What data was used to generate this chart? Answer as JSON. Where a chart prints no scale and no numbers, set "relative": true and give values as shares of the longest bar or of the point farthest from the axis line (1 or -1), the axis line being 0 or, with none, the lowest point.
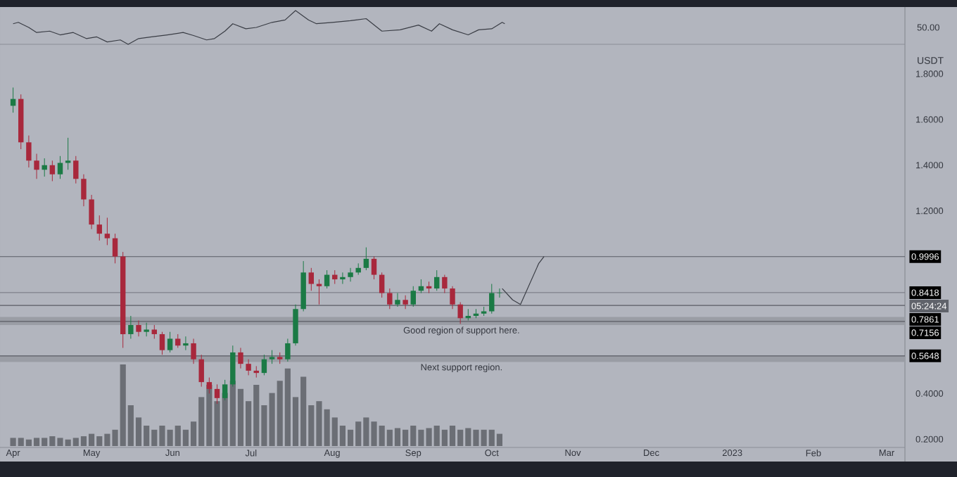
{
  "chart_data": [
    {
      "type": "line",
      "relative": true,
      "tick_labels": false,
      "xlim": [
        "2022-03-27",
        "2023-03-08"
      ],
      "annotations": [
        "50.00"
      ],
      "color": "#3a3d45",
      "x": [
        "2022-04-01",
        "2022-04-03",
        "2022-04-07",
        "2022-04-10",
        "2022-04-15",
        "2022-04-19",
        "2022-04-24",
        "2022-04-29",
        "2022-05-03",
        "2022-05-07",
        "2022-05-12",
        "2022-05-15",
        "2022-05-19",
        "2022-05-24",
        "2022-05-30",
        "2022-06-05",
        "2022-06-09",
        "2022-06-14",
        "2022-06-17",
        "2022-06-21",
        "2022-06-24",
        "2022-06-29",
        "2022-07-03",
        "2022-07-09",
        "2022-07-14",
        "2022-07-18",
        "2022-07-23",
        "2022-07-26",
        "2022-08-01",
        "2022-08-08",
        "2022-08-14",
        "2022-08-20",
        "2022-08-27",
        "2022-09-03",
        "2022-09-08",
        "2022-09-11",
        "2022-09-16",
        "2022-09-22",
        "2022-09-26",
        "2022-10-01",
        "2022-10-05",
        "2022-10-06"
      ],
      "values": [
        0.61,
        0.65,
        0.5,
        0.35,
        0.39,
        0.28,
        0.35,
        0.17,
        0.22,
        0.07,
        0.13,
        0,
        0.17,
        0.22,
        0.28,
        0.35,
        0.26,
        0.13,
        0.17,
        0.39,
        0.61,
        0.46,
        0.5,
        0.65,
        0.72,
        1,
        0.72,
        0.61,
        0.65,
        0.7,
        0.76,
        0.39,
        0.43,
        0.57,
        0.39,
        0.61,
        0.43,
        0.28,
        0.43,
        0.46,
        0.65,
        0.61
      ]
    },
    {
      "type": "candlestick",
      "ylabel": "USDT",
      "xlim": [
        "2022-03-27",
        "2023-03-08"
      ],
      "ylim": [
        0.17,
        1.92
      ],
      "xticks": [
        {
          "value": "2022-04-01",
          "label": "Apr"
        },
        {
          "value": "2022-05-01",
          "label": "May"
        },
        {
          "value": "2022-06-01",
          "label": "Jun"
        },
        {
          "value": "2022-07-01",
          "label": "Jul"
        },
        {
          "value": "2022-08-01",
          "label": "Aug"
        },
        {
          "value": "2022-09-01",
          "label": "Sep"
        },
        {
          "value": "2022-10-01",
          "label": "Oct"
        },
        {
          "value": "2022-11-01",
          "label": "Nov"
        },
        {
          "value": "2022-12-01",
          "label": "Dec"
        },
        {
          "value": "2023-01-01",
          "label": "2023"
        },
        {
          "value": "2023-02-01",
          "label": "Feb"
        },
        {
          "value": "2023-03-01",
          "label": "Mar"
        }
      ],
      "yticks": [
        {
          "value": 0.2,
          "label": "0.2000"
        },
        {
          "value": 0.4,
          "label": "0.4000"
        },
        {
          "value": 1.2,
          "label": "1.2000"
        },
        {
          "value": 1.4,
          "label": "1.4000"
        },
        {
          "value": 1.6,
          "label": "1.6000"
        },
        {
          "value": 1.8,
          "label": "1.8000"
        }
      ],
      "ref_lines": [
        {
          "axis": "y",
          "value": 0.9996,
          "label": "0.9996",
          "color": "#5a5d65"
        },
        {
          "axis": "y",
          "value": 0.8418,
          "label": "0.8418",
          "color": "#7e818a"
        },
        {
          "axis": "y",
          "value": 0.7861,
          "label": "0.7861",
          "color": "#5a5d65"
        },
        {
          "axis": "y",
          "value": 0.7156,
          "label": "0.7156",
          "color": "#5a5d65"
        },
        {
          "axis": "y",
          "value": 0.5648,
          "label": "0.5648",
          "color": "#5a5d65"
        }
      ],
      "bands": [
        {
          "axis": "y",
          "from": 0.7,
          "to": 0.735,
          "label": "Good region of support here.",
          "color": "#9a9da5"
        },
        {
          "axis": "y",
          "from": 0.538,
          "to": 0.5648,
          "label": "Next support region.",
          "color": "#9a9da5"
        }
      ],
      "annotations": [
        "05:24:24"
      ],
      "x": [
        "2022-04-01",
        "2022-04-04",
        "2022-04-07",
        "2022-04-10",
        "2022-04-13",
        "2022-04-16",
        "2022-04-19",
        "2022-04-22",
        "2022-04-25",
        "2022-04-28",
        "2022-05-01",
        "2022-05-04",
        "2022-05-07",
        "2022-05-10",
        "2022-05-13",
        "2022-05-16",
        "2022-05-19",
        "2022-05-22",
        "2022-05-25",
        "2022-05-28",
        "2022-05-31",
        "2022-06-03",
        "2022-06-06",
        "2022-06-09",
        "2022-06-12",
        "2022-06-15",
        "2022-06-18",
        "2022-06-21",
        "2022-06-24",
        "2022-06-27",
        "2022-06-30",
        "2022-07-03",
        "2022-07-06",
        "2022-07-09",
        "2022-07-12",
        "2022-07-15",
        "2022-07-18",
        "2022-07-21",
        "2022-07-24",
        "2022-07-27",
        "2022-07-30",
        "2022-08-02",
        "2022-08-05",
        "2022-08-08",
        "2022-08-11",
        "2022-08-14",
        "2022-08-17",
        "2022-08-20",
        "2022-08-23",
        "2022-08-26",
        "2022-08-29",
        "2022-09-01",
        "2022-09-04",
        "2022-09-07",
        "2022-09-10",
        "2022-09-13",
        "2022-09-16",
        "2022-09-19",
        "2022-09-22",
        "2022-09-25",
        "2022-09-28",
        "2022-10-01",
        "2022-10-04"
      ],
      "ohlc": [
        [
          1.66,
          1.74,
          1.63,
          1.69
        ],
        [
          1.69,
          1.71,
          1.47,
          1.5
        ],
        [
          1.5,
          1.53,
          1.39,
          1.42
        ],
        [
          1.42,
          1.45,
          1.34,
          1.38
        ],
        [
          1.38,
          1.43,
          1.35,
          1.4
        ],
        [
          1.4,
          1.42,
          1.33,
          1.36
        ],
        [
          1.36,
          1.44,
          1.34,
          1.41
        ],
        [
          1.41,
          1.52,
          1.38,
          1.42
        ],
        [
          1.42,
          1.44,
          1.32,
          1.34
        ],
        [
          1.34,
          1.36,
          1.22,
          1.25
        ],
        [
          1.25,
          1.27,
          1.12,
          1.14
        ],
        [
          1.14,
          1.18,
          1.07,
          1.1
        ],
        [
          1.1,
          1.17,
          1.05,
          1.08
        ],
        [
          1.08,
          1.1,
          0.97,
          1.0
        ],
        [
          1.0,
          1.02,
          0.6,
          0.66
        ],
        [
          0.66,
          0.74,
          0.64,
          0.7
        ],
        [
          0.7,
          0.72,
          0.65,
          0.67
        ],
        [
          0.67,
          0.71,
          0.65,
          0.68
        ],
        [
          0.68,
          0.7,
          0.64,
          0.66
        ],
        [
          0.66,
          0.67,
          0.57,
          0.59
        ],
        [
          0.59,
          0.67,
          0.58,
          0.64
        ],
        [
          0.64,
          0.66,
          0.6,
          0.61
        ],
        [
          0.61,
          0.65,
          0.59,
          0.62
        ],
        [
          0.62,
          0.64,
          0.53,
          0.55
        ],
        [
          0.55,
          0.57,
          0.43,
          0.45
        ],
        [
          0.45,
          0.47,
          0.4,
          0.42
        ],
        [
          0.42,
          0.44,
          0.355,
          0.38
        ],
        [
          0.38,
          0.46,
          0.37,
          0.44
        ],
        [
          0.44,
          0.61,
          0.43,
          0.58
        ],
        [
          0.58,
          0.6,
          0.51,
          0.53
        ],
        [
          0.53,
          0.55,
          0.48,
          0.5
        ],
        [
          0.5,
          0.52,
          0.47,
          0.49
        ],
        [
          0.49,
          0.57,
          0.48,
          0.55
        ],
        [
          0.55,
          0.59,
          0.53,
          0.56
        ],
        [
          0.56,
          0.58,
          0.53,
          0.55
        ],
        [
          0.55,
          0.64,
          0.54,
          0.62
        ],
        [
          0.62,
          0.79,
          0.61,
          0.77
        ],
        [
          0.77,
          0.98,
          0.76,
          0.93
        ],
        [
          0.93,
          0.95,
          0.85,
          0.88
        ],
        [
          0.88,
          0.9,
          0.79,
          0.87
        ],
        [
          0.87,
          0.94,
          0.86,
          0.92
        ],
        [
          0.92,
          0.94,
          0.88,
          0.9
        ],
        [
          0.9,
          0.93,
          0.88,
          0.91
        ],
        [
          0.91,
          0.95,
          0.89,
          0.93
        ],
        [
          0.93,
          0.97,
          0.92,
          0.95
        ],
        [
          0.95,
          1.04,
          0.94,
          0.99
        ],
        [
          0.99,
          1.0,
          0.9,
          0.92
        ],
        [
          0.92,
          0.93,
          0.82,
          0.84
        ],
        [
          0.84,
          0.86,
          0.77,
          0.79
        ],
        [
          0.79,
          0.84,
          0.78,
          0.81
        ],
        [
          0.81,
          0.83,
          0.77,
          0.79
        ],
        [
          0.79,
          0.87,
          0.78,
          0.85
        ],
        [
          0.85,
          0.9,
          0.84,
          0.87
        ],
        [
          0.87,
          0.89,
          0.84,
          0.86
        ],
        [
          0.86,
          0.94,
          0.85,
          0.91
        ],
        [
          0.91,
          0.92,
          0.84,
          0.86
        ],
        [
          0.86,
          0.87,
          0.77,
          0.79
        ],
        [
          0.79,
          0.8,
          0.705,
          0.73
        ],
        [
          0.73,
          0.77,
          0.72,
          0.74
        ],
        [
          0.74,
          0.77,
          0.73,
          0.75
        ],
        [
          0.75,
          0.78,
          0.74,
          0.76
        ],
        [
          0.76,
          0.88,
          0.75,
          0.84
        ],
        [
          0.84,
          0.86,
          0.82,
          0.8418
        ]
      ],
      "colors": [
        "#1b7a45",
        "#a8283c",
        "#a8283c",
        "#a8283c",
        "#1b7a45",
        "#a8283c",
        "#1b7a45",
        "#1b7a45",
        "#a8283c",
        "#a8283c",
        "#a8283c",
        "#a8283c",
        "#a8283c",
        "#a8283c",
        "#a8283c",
        "#1b7a45",
        "#a8283c",
        "#1b7a45",
        "#a8283c",
        "#a8283c",
        "#1b7a45",
        "#a8283c",
        "#1b7a45",
        "#a8283c",
        "#a8283c",
        "#a8283c",
        "#a8283c",
        "#1b7a45",
        "#1b7a45",
        "#a8283c",
        "#a8283c",
        "#a8283c",
        "#1b7a45",
        "#1b7a45",
        "#a8283c",
        "#1b7a45",
        "#1b7a45",
        "#1b7a45",
        "#a8283c",
        "#a8283c",
        "#1b7a45",
        "#a8283c",
        "#1b7a45",
        "#1b7a45",
        "#1b7a45",
        "#1b7a45",
        "#a8283c",
        "#a8283c",
        "#a8283c",
        "#1b7a45",
        "#a8283c",
        "#1b7a45",
        "#1b7a45",
        "#a8283c",
        "#1b7a45",
        "#a8283c",
        "#a8283c",
        "#a8283c",
        "#1b7a45",
        "#1b7a45",
        "#1b7a45",
        "#1b7a45",
        "#1b7a45"
      ],
      "series": [
        {
          "type": "line",
          "color": "#3a3d45",
          "x": [
            "2022-10-05",
            "2022-10-09",
            "2022-10-12",
            "2022-10-19",
            "2022-10-21"
          ],
          "values": [
            0.86,
            0.81,
            0.79,
            0.97,
            1.0
          ]
        }
      ]
    },
    {
      "type": "bar",
      "relative": true,
      "tick_labels": false,
      "xlim": [
        "2022-03-27",
        "2023-03-08"
      ],
      "color": "#6b6e75",
      "x": [
        "2022-04-01",
        "2022-04-04",
        "2022-04-07",
        "2022-04-10",
        "2022-04-13",
        "2022-04-16",
        "2022-04-19",
        "2022-04-22",
        "2022-04-25",
        "2022-04-28",
        "2022-05-01",
        "2022-05-04",
        "2022-05-07",
        "2022-05-10",
        "2022-05-13",
        "2022-05-16",
        "2022-05-19",
        "2022-05-22",
        "2022-05-25",
        "2022-05-28",
        "2022-05-31",
        "2022-06-03",
        "2022-06-06",
        "2022-06-09",
        "2022-06-12",
        "2022-06-15",
        "2022-06-18",
        "2022-06-21",
        "2022-06-24",
        "2022-06-27",
        "2022-06-30",
        "2022-07-03",
        "2022-07-06",
        "2022-07-09",
        "2022-07-12",
        "2022-07-15",
        "2022-07-18",
        "2022-07-21",
        "2022-07-24",
        "2022-07-27",
        "2022-07-30",
        "2022-08-02",
        "2022-08-05",
        "2022-08-08",
        "2022-08-11",
        "2022-08-14",
        "2022-08-17",
        "2022-08-20",
        "2022-08-23",
        "2022-08-26",
        "2022-08-29",
        "2022-09-01",
        "2022-09-04",
        "2022-09-07",
        "2022-09-10",
        "2022-09-13",
        "2022-09-16",
        "2022-09-19",
        "2022-09-22",
        "2022-09-25",
        "2022-09-28",
        "2022-10-01",
        "2022-10-04"
      ],
      "values": [
        0.1,
        0.1,
        0.08,
        0.1,
        0.1,
        0.12,
        0.1,
        0.08,
        0.1,
        0.12,
        0.15,
        0.12,
        0.15,
        0.2,
        1.0,
        0.5,
        0.35,
        0.25,
        0.2,
        0.25,
        0.2,
        0.25,
        0.2,
        0.3,
        0.6,
        0.75,
        0.55,
        0.65,
        0.8,
        0.7,
        0.55,
        0.75,
        0.5,
        0.65,
        0.8,
        0.95,
        0.6,
        0.85,
        0.5,
        0.55,
        0.45,
        0.35,
        0.25,
        0.2,
        0.3,
        0.35,
        0.3,
        0.25,
        0.2,
        0.22,
        0.2,
        0.25,
        0.2,
        0.22,
        0.25,
        0.2,
        0.25,
        0.2,
        0.22,
        0.2,
        0.2,
        0.2,
        0.15
      ]
    }
  ]
}
